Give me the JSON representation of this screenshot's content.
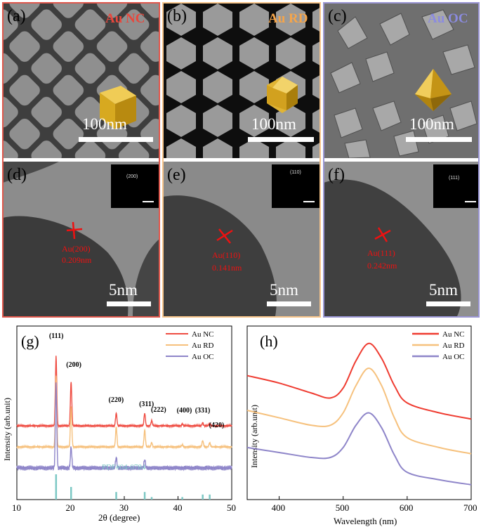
{
  "sem": {
    "a": {
      "letter": "(a)",
      "title": "Au NC",
      "scale": "100nm",
      "title_color": "#e8473c",
      "frame_color": "#e0574c"
    },
    "b": {
      "letter": "(b)",
      "title": "Au RD",
      "scale": "100nm",
      "title_color": "#f5a54a",
      "frame_color": "#f7c48a"
    },
    "c": {
      "letter": "(c)",
      "title": "Au OC",
      "scale": "100nm",
      "title_color": "#8b8be0",
      "frame_color": "#9a96d4"
    }
  },
  "tem": {
    "d": {
      "letter": "(d)",
      "plane": "Au(200)",
      "spacing": "0.209nm",
      "inset": "(200)",
      "scale": "5nm"
    },
    "e": {
      "letter": "(e)",
      "plane": "Au(110)",
      "spacing": "0.141nm",
      "inset": "(110)",
      "scale": "5nm"
    },
    "f": {
      "letter": "(f)",
      "plane": "Au(111)",
      "spacing": "0.242nm",
      "inset": "(111)",
      "scale": "5nm"
    }
  },
  "chart_data": [
    {
      "type": "line",
      "panel": "(g)",
      "xlabel": "2θ (degree)",
      "ylabel": "Intensity (arb.unit)",
      "xlim": [
        10,
        50
      ],
      "xticks": [
        10,
        20,
        30,
        40,
        50
      ],
      "legend_position": "top-right",
      "series": [
        {
          "name": "Au NC",
          "color": "#ef4d43",
          "baseline": 0.6,
          "peaks": [
            [
              17.3,
              3.3
            ],
            [
              20.1,
              2.1
            ],
            [
              28.5,
              0.6
            ],
            [
              33.8,
              0.6
            ],
            [
              35.1,
              0.25
            ],
            [
              40.8,
              0.1
            ],
            [
              44.6,
              0.15
            ],
            [
              45.9,
              0.12
            ]
          ]
        },
        {
          "name": "Au RD",
          "color": "#f6c07c",
          "baseline": 0.35,
          "peaks": [
            [
              17.3,
              3.4
            ],
            [
              20.1,
              1.9
            ],
            [
              28.5,
              0.95
            ],
            [
              33.8,
              0.8
            ],
            [
              35.1,
              0.2
            ],
            [
              40.8,
              0.1
            ],
            [
              44.6,
              0.3
            ],
            [
              45.9,
              0.2
            ]
          ]
        },
        {
          "name": "Au OC",
          "color": "#8e85c9",
          "baseline": 0.1,
          "peaks": [
            [
              17.3,
              4.0
            ],
            [
              20.1,
              1.0
            ],
            [
              28.5,
              0.5
            ],
            [
              33.8,
              0.4
            ]
          ]
        }
      ],
      "peak_labels": [
        {
          "label": "(111)",
          "x": 17.3
        },
        {
          "label": "(200)",
          "x": 20.1
        },
        {
          "label": "(220)",
          "x": 28.5
        },
        {
          "label": "(311)",
          "x": 33.8
        },
        {
          "label": "(222)",
          "x": 35.1
        },
        {
          "label": "(400)",
          "x": 40.8
        },
        {
          "label": "(331)",
          "x": 44.6
        },
        {
          "label": "(420)",
          "x": 45.9
        }
      ],
      "reference": {
        "name": "PDF#04-0784",
        "color": "#7cc8c4",
        "lines": [
          [
            17.3,
            1.0
          ],
          [
            20.1,
            0.5
          ],
          [
            28.5,
            0.3
          ],
          [
            33.8,
            0.3
          ],
          [
            35.1,
            0.1
          ],
          [
            40.8,
            0.1
          ],
          [
            44.6,
            0.2
          ],
          [
            45.9,
            0.2
          ]
        ]
      }
    },
    {
      "type": "line",
      "panel": "(h)",
      "xlabel": "Wavelength (nm)",
      "ylabel": "Intensity (arb.unit)",
      "xlim": [
        350,
        700
      ],
      "xticks": [
        400,
        500,
        600,
        700
      ],
      "legend_position": "top-right",
      "series": [
        {
          "name": "Au NC",
          "color": "#ef3b30",
          "x": [
            350,
            400,
            450,
            480,
            500,
            520,
            540,
            560,
            580,
            600,
            650,
            700
          ],
          "y": [
            5.0,
            4.7,
            4.3,
            4.1,
            4.5,
            5.6,
            6.3,
            5.7,
            4.6,
            3.9,
            3.5,
            3.25
          ]
        },
        {
          "name": "Au RD",
          "color": "#f6c17d",
          "x": [
            350,
            400,
            450,
            480,
            500,
            520,
            540,
            560,
            580,
            600,
            650,
            700
          ],
          "y": [
            3.6,
            3.3,
            3.0,
            3.0,
            3.5,
            4.6,
            5.3,
            4.6,
            3.3,
            2.5,
            2.1,
            1.85
          ]
        },
        {
          "name": "Au OC",
          "color": "#8e85c9",
          "x": [
            350,
            400,
            450,
            480,
            500,
            520,
            540,
            560,
            580,
            600,
            650,
            700
          ],
          "y": [
            2.1,
            1.9,
            1.7,
            1.7,
            2.1,
            3.0,
            3.5,
            2.9,
            1.8,
            1.1,
            0.8,
            0.6
          ]
        }
      ]
    }
  ]
}
